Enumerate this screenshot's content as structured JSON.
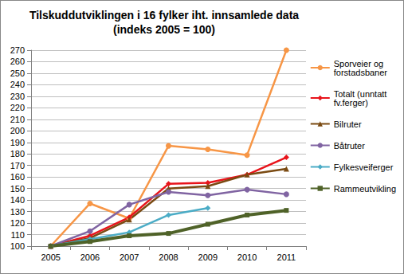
{
  "chart_data": {
    "type": "line",
    "title": "Tilskuddutviklingen i 16 fylker iht. innsamlede data\n(indeks 2005 = 100)",
    "categories": [
      "2005",
      "2006",
      "2007",
      "2008",
      "2009",
      "2010",
      "2011"
    ],
    "series": [
      {
        "name": "Sporveier og forstadsbaner",
        "color": "#F79646",
        "marker": "circle",
        "values": [
          100,
          137,
          124,
          187,
          184,
          179,
          270
        ]
      },
      {
        "name": "Totalt (unntatt fv.ferger)",
        "color": "#E8141B",
        "marker": "diamond",
        "values": [
          100,
          109,
          125,
          154,
          155,
          162,
          177
        ]
      },
      {
        "name": "Bilruter",
        "color": "#7A4A12",
        "marker": "triangle",
        "values": [
          100,
          107,
          123,
          150,
          152,
          162,
          167
        ]
      },
      {
        "name": "Båtruter",
        "color": "#8064A2",
        "marker": "circle",
        "values": [
          100,
          113,
          136,
          147,
          144,
          149,
          145
        ]
      },
      {
        "name": "Fylkesveiferger",
        "color": "#4BACC6",
        "marker": "diamond",
        "values": [
          100,
          106,
          112,
          127,
          133,
          null,
          null
        ]
      },
      {
        "name": "Rammeutvikling",
        "color": "#4F6228",
        "marker": "square",
        "values": [
          100,
          104,
          109,
          111,
          119,
          127,
          131
        ]
      }
    ],
    "ylim": [
      100,
      270
    ],
    "yticks": [
      100,
      110,
      120,
      130,
      140,
      150,
      160,
      170,
      180,
      190,
      200,
      210,
      220,
      230,
      240,
      250,
      260,
      270
    ],
    "grid": true,
    "legend": "right"
  }
}
